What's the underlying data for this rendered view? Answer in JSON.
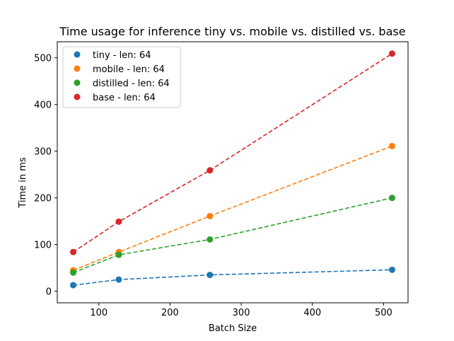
{
  "chart_data": {
    "type": "scatter",
    "title": "Time usage for inference tiny vs. mobile vs. distilled vs. base",
    "xlabel": "Batch Size",
    "ylabel": "Time in ms",
    "xlim": [
      41.6,
      534.4
    ],
    "ylim": [
      -24.7,
      534.4
    ],
    "xticks": [
      100,
      200,
      300,
      400,
      500
    ],
    "yticks": [
      0,
      100,
      200,
      300,
      400,
      500
    ],
    "grid": false,
    "legend_position": "top-left",
    "x": [
      64,
      128,
      256,
      512
    ],
    "series": [
      {
        "name": "tiny - len: 64",
        "color": "#1f77b4",
        "values": [
          13,
          25,
          35,
          46
        ]
      },
      {
        "name": "mobile - len: 64",
        "color": "#ff7f0e",
        "values": [
          45,
          84,
          161,
          311
        ]
      },
      {
        "name": "distilled - len: 64",
        "color": "#2ca02c",
        "values": [
          40,
          78,
          111,
          200
        ]
      },
      {
        "name": "base - len: 64",
        "color": "#d62728",
        "values": [
          84,
          149,
          259,
          509
        ]
      }
    ],
    "trendline_style": "dashed"
  }
}
